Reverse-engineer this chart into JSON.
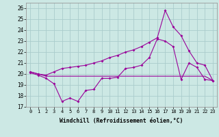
{
  "xlabel": "Windchill (Refroidissement éolien,°C)",
  "bg_color": "#cce8e4",
  "grid_color": "#aacccc",
  "line_color": "#990099",
  "xlim": [
    -0.5,
    23.5
  ],
  "ylim": [
    17,
    26.5
  ],
  "yticks": [
    17,
    18,
    19,
    20,
    21,
    22,
    23,
    24,
    25,
    26
  ],
  "xticks": [
    0,
    1,
    2,
    3,
    4,
    5,
    6,
    7,
    8,
    9,
    10,
    11,
    12,
    13,
    14,
    15,
    16,
    17,
    18,
    19,
    20,
    21,
    22,
    23
  ],
  "line1_x": [
    0,
    1,
    2,
    3,
    4,
    5,
    6,
    7,
    8,
    9,
    10,
    11,
    12,
    13,
    14,
    15,
    16,
    17,
    18,
    19,
    20,
    21,
    22,
    23
  ],
  "line1_y": [
    20.1,
    19.9,
    19.6,
    19.1,
    17.5,
    17.8,
    17.5,
    18.5,
    18.6,
    19.6,
    19.6,
    19.7,
    20.5,
    20.6,
    20.8,
    21.5,
    23.2,
    23.0,
    22.5,
    19.5,
    21.0,
    20.6,
    19.5,
    19.4
  ],
  "line2_x": [
    0,
    1,
    2,
    3,
    4,
    5,
    6,
    7,
    8,
    9,
    10,
    11,
    12,
    13,
    14,
    15,
    16,
    17,
    18,
    19,
    20,
    21,
    22,
    23
  ],
  "line2_y": [
    20.2,
    20.0,
    19.8,
    19.8,
    19.8,
    19.8,
    19.8,
    19.8,
    19.8,
    19.8,
    19.8,
    19.8,
    19.8,
    19.8,
    19.8,
    19.8,
    19.8,
    19.8,
    19.8,
    19.8,
    19.8,
    19.8,
    19.8,
    19.4
  ],
  "line3_x": [
    0,
    1,
    2,
    3,
    4,
    5,
    6,
    7,
    8,
    9,
    10,
    11,
    12,
    13,
    14,
    15,
    16,
    17,
    18,
    19,
    20,
    21,
    22,
    23
  ],
  "line3_y": [
    20.2,
    20.0,
    19.9,
    20.2,
    20.5,
    20.6,
    20.7,
    20.8,
    21.0,
    21.2,
    21.5,
    21.7,
    22.0,
    22.2,
    22.5,
    22.9,
    23.3,
    25.8,
    24.3,
    23.5,
    22.1,
    21.0,
    20.8,
    19.4
  ]
}
